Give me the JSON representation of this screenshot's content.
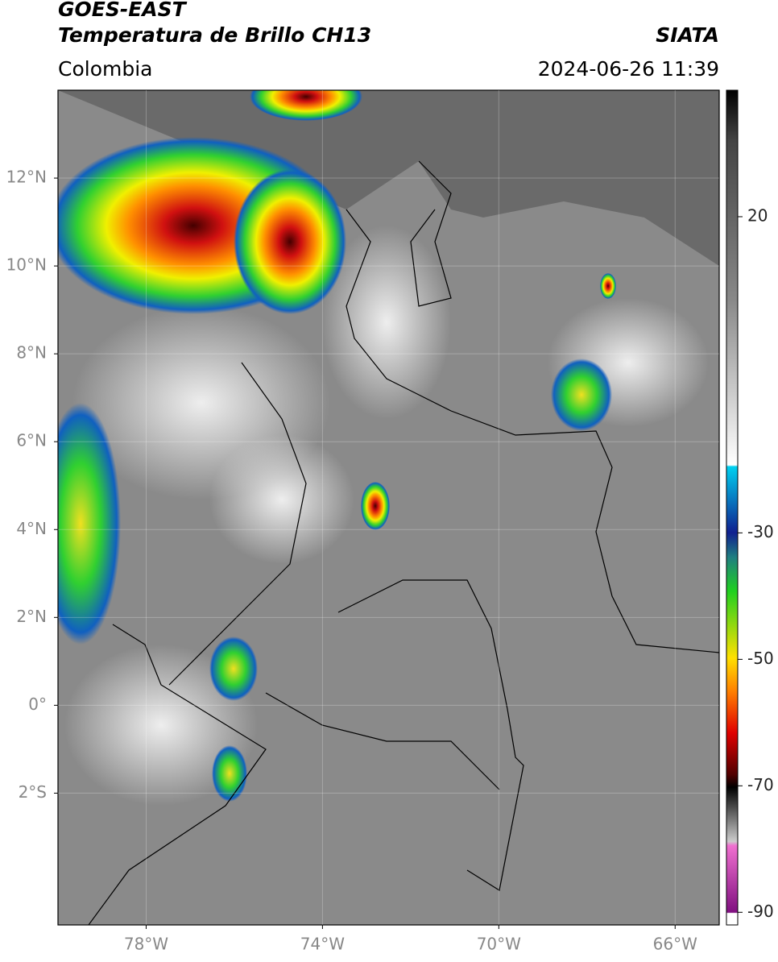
{
  "header": {
    "title": "GOES-EAST",
    "subtitle": "Temperatura de Brillo CH13",
    "source": "SIATA",
    "region": "Colombia",
    "timestamp": "2024-06-26 11:39"
  },
  "map": {
    "xlim": [
      -80,
      -65
    ],
    "ylim": [
      -5,
      14
    ],
    "xticks": [
      {
        "value": -78,
        "label": "78°W"
      },
      {
        "value": -74,
        "label": "74°W"
      },
      {
        "value": -70,
        "label": "70°W"
      },
      {
        "value": -66,
        "label": "66°W"
      }
    ],
    "yticks": [
      {
        "value": 12,
        "label": "12°N"
      },
      {
        "value": 10,
        "label": "10°N"
      },
      {
        "value": 8,
        "label": "8°N"
      },
      {
        "value": 6,
        "label": "6°N"
      },
      {
        "value": 4,
        "label": "4°N"
      },
      {
        "value": 2,
        "label": "2°N"
      },
      {
        "value": 0,
        "label": "0°"
      },
      {
        "value": -2,
        "label": "2°S"
      }
    ],
    "grid": true
  },
  "colorbar": {
    "lim": [
      -92,
      40
    ],
    "ticks": [
      20,
      -30,
      -50,
      -70,
      -90
    ]
  }
}
